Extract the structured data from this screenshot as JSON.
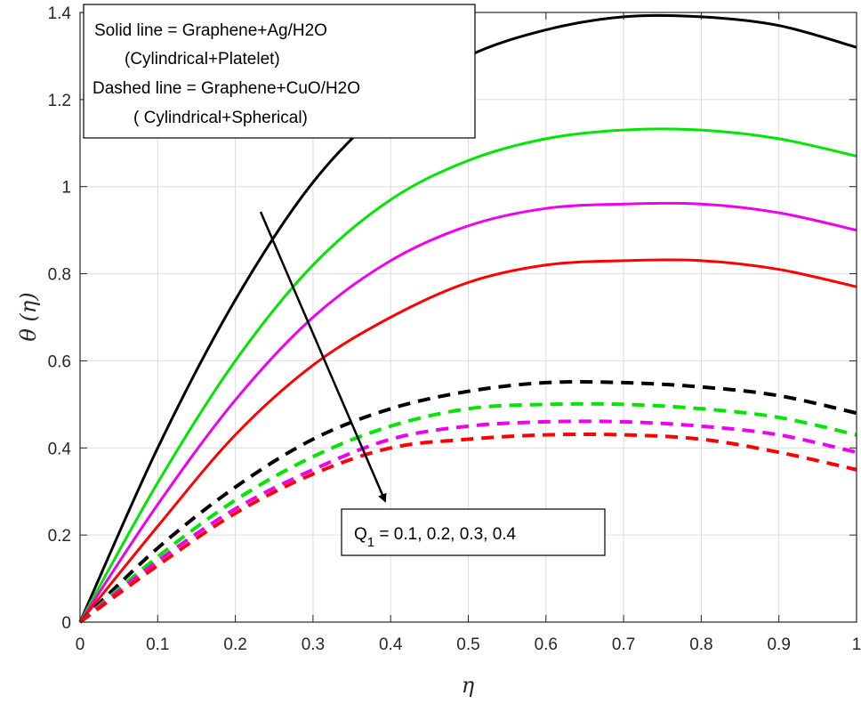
{
  "chart_data": {
    "type": "line",
    "xlabel": "η",
    "ylabel": "θ (η)",
    "xlim": [
      0,
      1
    ],
    "ylim": [
      0,
      1.4
    ],
    "xticks": [
      "0",
      "0.1",
      "0.2",
      "0.3",
      "0.4",
      "0.5",
      "0.6",
      "0.7",
      "0.8",
      "0.9",
      "1"
    ],
    "yticks": [
      "0",
      "0.2",
      "0.4",
      "0.6",
      "0.8",
      "1",
      "1.2",
      "1.4"
    ],
    "grid": true,
    "legend": {
      "placement": "top-left",
      "lines": [
        "Solid line = Graphene+Ag/H2O",
        "(Cylindrical+Platelet)",
        "Dashed line = Graphene+CuO/H2O",
        "( Cylindrical+Spherical)"
      ]
    },
    "annotation": {
      "symbol": "Q",
      "subscript": "1",
      "text": " = 0.1, 0.2, 0.3, 0.4"
    },
    "x": [
      0,
      0.1,
      0.2,
      0.3,
      0.4,
      0.5,
      0.6,
      0.7,
      0.8,
      0.9,
      1.0
    ],
    "series": [
      {
        "style": "solid",
        "color": "#000000",
        "values": [
          0,
          0.4,
          0.74,
          1.01,
          1.19,
          1.3,
          1.36,
          1.39,
          1.39,
          1.37,
          1.32
        ]
      },
      {
        "style": "solid",
        "color": "#00e600",
        "values": [
          0,
          0.32,
          0.6,
          0.82,
          0.97,
          1.06,
          1.11,
          1.13,
          1.13,
          1.11,
          1.07
        ]
      },
      {
        "style": "solid",
        "color": "#ee00ee",
        "values": [
          0,
          0.27,
          0.51,
          0.7,
          0.83,
          0.91,
          0.95,
          0.96,
          0.96,
          0.94,
          0.9
        ]
      },
      {
        "style": "solid",
        "color": "#ff0000",
        "values": [
          0,
          0.22,
          0.43,
          0.59,
          0.7,
          0.78,
          0.82,
          0.83,
          0.83,
          0.81,
          0.77
        ]
      },
      {
        "style": "dashed",
        "color": "#000000",
        "values": [
          0,
          0.17,
          0.31,
          0.42,
          0.49,
          0.53,
          0.55,
          0.55,
          0.54,
          0.52,
          0.48
        ]
      },
      {
        "style": "dashed",
        "color": "#00e600",
        "values": [
          0,
          0.15,
          0.28,
          0.38,
          0.45,
          0.49,
          0.5,
          0.5,
          0.49,
          0.47,
          0.43
        ]
      },
      {
        "style": "dashed",
        "color": "#ee00ee",
        "values": [
          0,
          0.14,
          0.26,
          0.35,
          0.42,
          0.45,
          0.46,
          0.46,
          0.45,
          0.43,
          0.39
        ]
      },
      {
        "style": "dashed",
        "color": "#ff0000",
        "values": [
          0,
          0.13,
          0.25,
          0.34,
          0.4,
          0.42,
          0.43,
          0.43,
          0.42,
          0.39,
          0.35
        ]
      }
    ]
  }
}
